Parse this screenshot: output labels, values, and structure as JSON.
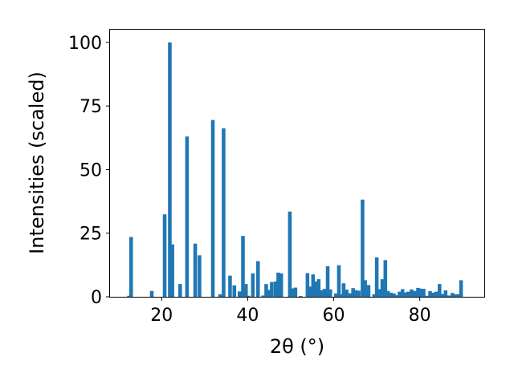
{
  "chart_data": {
    "type": "bar",
    "title": "",
    "xlabel": "2θ (°)",
    "ylabel": "Intensities (scaled)",
    "xlim": [
      8,
      95
    ],
    "ylim": [
      0,
      105
    ],
    "x_ticks": [
      20,
      40,
      60,
      80
    ],
    "y_ticks": [
      0,
      25,
      50,
      75,
      100
    ],
    "grid": false,
    "bar_color": "#1f77b4",
    "bar_width": 0.85,
    "x": [
      12.4,
      12.9,
      17.7,
      20.7,
      21.9,
      22.5,
      24.3,
      25.9,
      27.8,
      28.8,
      31.9,
      33.6,
      34.4,
      35.9,
      36.9,
      38.1,
      38.9,
      39.6,
      40.2,
      41.2,
      42.4,
      43.6,
      44.3,
      44.9,
      45.6,
      46.5,
      47.1,
      47.8,
      49.8,
      50.4,
      51.1,
      52.3,
      53.9,
      54.6,
      55.2,
      55.9,
      56.5,
      57.2,
      57.9,
      58.6,
      59.2,
      60.5,
      61.2,
      61.8,
      62.3,
      63.0,
      63.8,
      64.5,
      65.1,
      65.8,
      66.7,
      67.3,
      68.1,
      69.4,
      70.0,
      70.6,
      71.3,
      72.0,
      72.6,
      73.3,
      74.0,
      74.7,
      75.3,
      76.0,
      76.7,
      77.3,
      78.1,
      78.8,
      79.6,
      80.2,
      80.9,
      81.6,
      82.4,
      83.1,
      83.8,
      84.6,
      85.3,
      86.0,
      86.8,
      87.6,
      88.3,
      89.0,
      89.6
    ],
    "values": [
      0.4,
      23.5,
      2.3,
      32.4,
      100.0,
      20.6,
      5.0,
      63.0,
      20.9,
      16.3,
      69.5,
      1.0,
      66.2,
      8.3,
      4.5,
      2.1,
      23.9,
      5.0,
      0.4,
      9.2,
      14.0,
      0.5,
      5.0,
      2.7,
      5.8,
      6.0,
      9.5,
      9.2,
      33.5,
      3.3,
      3.6,
      0.3,
      9.3,
      4.0,
      8.8,
      6.0,
      6.9,
      2.6,
      3.1,
      12.0,
      2.9,
      1.3,
      12.4,
      1.0,
      5.3,
      2.8,
      1.4,
      3.4,
      2.6,
      2.4,
      38.2,
      6.5,
      4.6,
      1.0,
      15.5,
      3.0,
      6.9,
      14.4,
      2.3,
      1.6,
      1.3,
      0.6,
      2.0,
      3.0,
      1.7,
      2.0,
      2.9,
      2.3,
      3.5,
      3.2,
      3.1,
      0.4,
      2.2,
      1.6,
      2.0,
      5.0,
      1.1,
      2.5,
      0.5,
      1.5,
      1.0,
      1.0,
      6.5
    ]
  }
}
